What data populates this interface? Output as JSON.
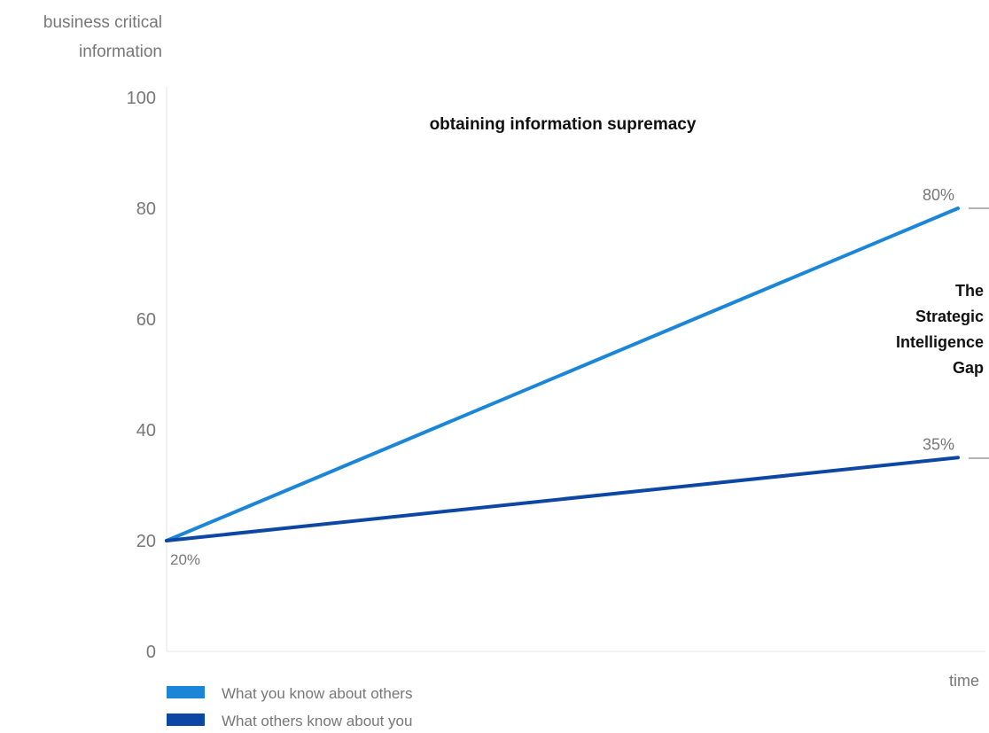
{
  "chart_data": {
    "type": "line",
    "title": "obtaining information supremacy",
    "ylabel": [
      "business critical",
      "information"
    ],
    "xlabel": "time",
    "ylim": [
      0,
      100
    ],
    "yticks": [
      0,
      20,
      40,
      60,
      80,
      100
    ],
    "x": [
      0,
      1
    ],
    "series": [
      {
        "name": "What you know about others",
        "color": "#1b86d8",
        "values": [
          20,
          80
        ],
        "labels": [
          "",
          "80%"
        ]
      },
      {
        "name": "What others know about you",
        "color": "#0d47a5",
        "values": [
          20,
          35
        ],
        "labels": [
          "",
          "35%"
        ]
      }
    ],
    "start_label": "20%",
    "gap_annotation": [
      "The",
      "Strategic",
      "Intelligence",
      "Gap"
    ],
    "grid": false,
    "legend_position": "bottom-left"
  }
}
